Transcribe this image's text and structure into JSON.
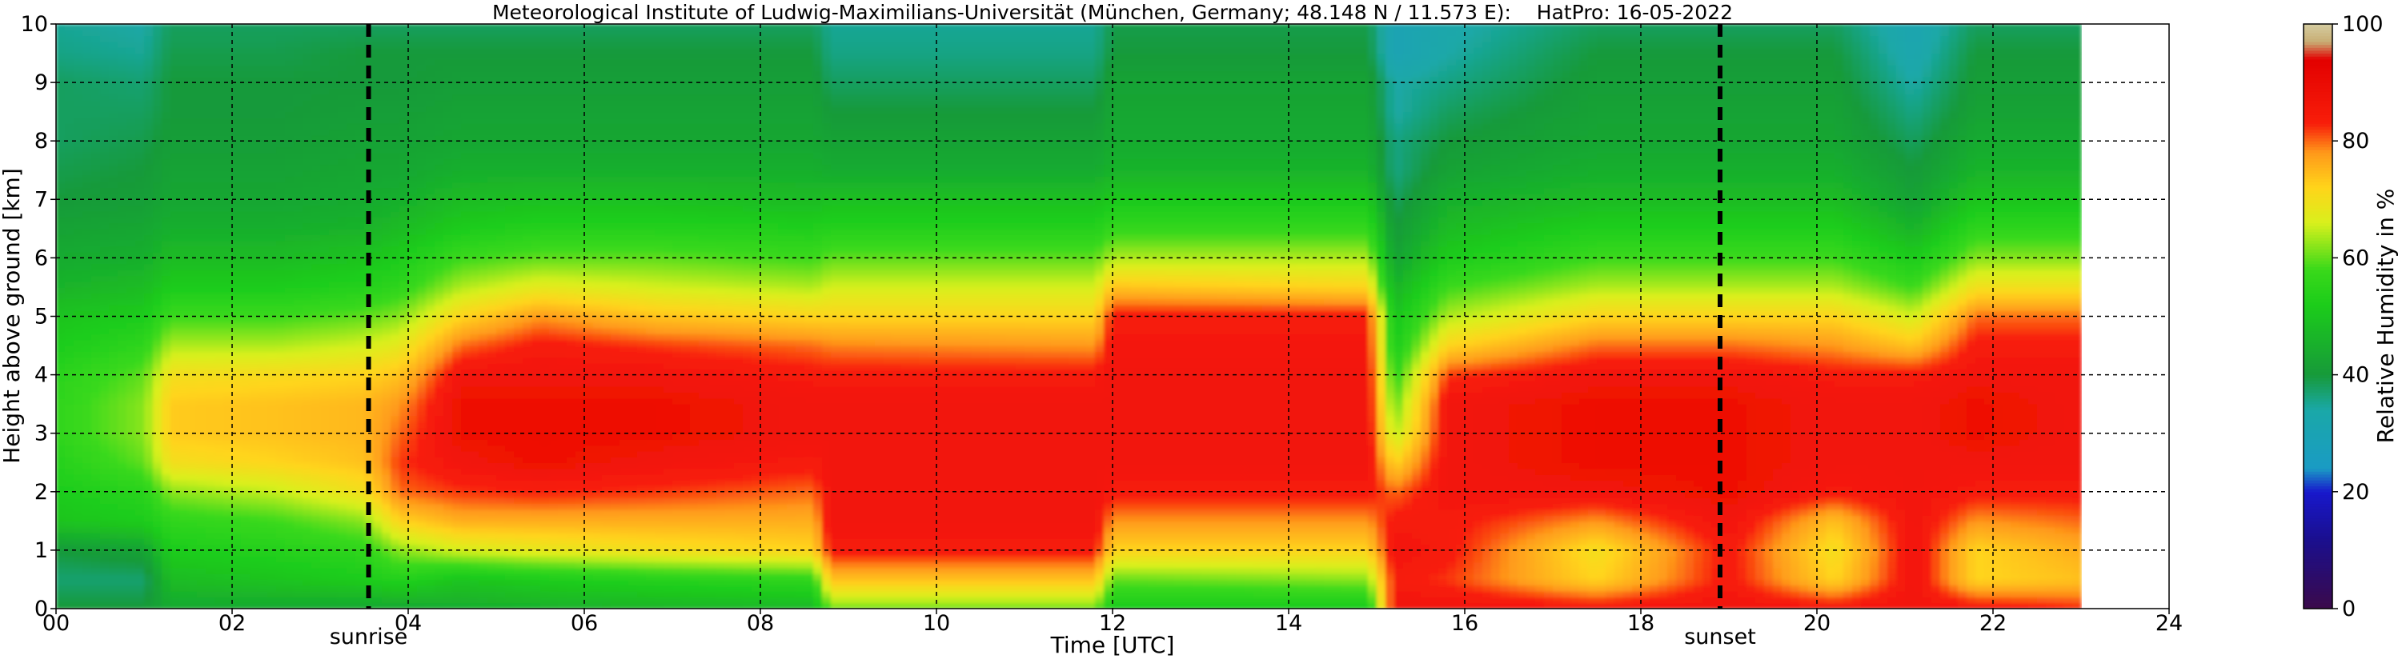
{
  "chart_data": {
    "type": "heatmap",
    "title": "Meteorological Institute of Ludwig-Maximilians-Universität (München, Germany; 48.148 N / 11.573 E):    HatPro: 16-05-2022",
    "xlabel": "Time [UTC]",
    "ylabel": "Height above ground [km]",
    "colorbar_label": "Relative Humidity in %",
    "xlim": [
      0,
      24
    ],
    "ylim": [
      0,
      10
    ],
    "clim": [
      0,
      100
    ],
    "x_ticks": [
      "00",
      "02",
      "04",
      "06",
      "08",
      "10",
      "12",
      "14",
      "16",
      "18",
      "20",
      "22",
      "24"
    ],
    "y_ticks": [
      "0",
      "1",
      "2",
      "3",
      "4",
      "5",
      "6",
      "7",
      "8",
      "9",
      "10"
    ],
    "colorbar_ticks": [
      "0",
      "20",
      "40",
      "60",
      "80",
      "100"
    ],
    "grid": true,
    "data_end_hour": 23.0,
    "markers": [
      {
        "label": "sunrise",
        "x": 3.55
      },
      {
        "label": "sunset",
        "x": 18.9
      }
    ],
    "colormap": [
      {
        "value": 0,
        "color": "#3b0a4a"
      },
      {
        "value": 12,
        "color": "#1a0f8f"
      },
      {
        "value": 20,
        "color": "#1818cc"
      },
      {
        "value": 24,
        "color": "#1a9bc4"
      },
      {
        "value": 34,
        "color": "#1aa8a8"
      },
      {
        "value": 40,
        "color": "#179a3a"
      },
      {
        "value": 52,
        "color": "#1ccc1a"
      },
      {
        "value": 58,
        "color": "#39d91a"
      },
      {
        "value": 66,
        "color": "#d8f01c"
      },
      {
        "value": 72,
        "color": "#ffd51a"
      },
      {
        "value": 78,
        "color": "#ff9a1a"
      },
      {
        "value": 83,
        "color": "#f81e0a"
      },
      {
        "value": 94,
        "color": "#e30000"
      },
      {
        "value": 97,
        "color": "#c8ad74"
      },
      {
        "value": 100,
        "color": "#d4cba0"
      }
    ],
    "heights_km": [
      0.05,
      0.5,
      1.0,
      1.5,
      2.0,
      2.5,
      3.0,
      3.5,
      4.0,
      4.5,
      5.0,
      5.5,
      6.0,
      6.5,
      7.0,
      7.5,
      8.0,
      8.5,
      9.0,
      9.5,
      10.0
    ],
    "columns": [
      {
        "t": 0.0,
        "rh": [
          40,
          37,
          40,
          50,
          52,
          54,
          56,
          56,
          55,
          52,
          50,
          46,
          44,
          42,
          40,
          39,
          38,
          38,
          38,
          36,
          35
        ]
      },
      {
        "t": 1.0,
        "rh": [
          40,
          37,
          42,
          52,
          55,
          60,
          62,
          62,
          60,
          56,
          52,
          48,
          45,
          43,
          41,
          40,
          39,
          38,
          37,
          35,
          34
        ]
      },
      {
        "t": 1.3,
        "rh": [
          44,
          48,
          52,
          56,
          62,
          70,
          73,
          73,
          70,
          64,
          58,
          52,
          48,
          45,
          43,
          42,
          41,
          40,
          40,
          39,
          38
        ]
      },
      {
        "t": 2.5,
        "rh": [
          44,
          50,
          54,
          58,
          65,
          72,
          74,
          74,
          71,
          64,
          58,
          52,
          48,
          45,
          43,
          42,
          41,
          40,
          40,
          39,
          38
        ]
      },
      {
        "t": 3.5,
        "rh": [
          44,
          52,
          56,
          62,
          70,
          74,
          75,
          75,
          72,
          66,
          60,
          54,
          50,
          46,
          44,
          43,
          42,
          41,
          40,
          40,
          38
        ]
      },
      {
        "t": 3.9,
        "rh": [
          44,
          54,
          62,
          72,
          80,
          82,
          80,
          78,
          74,
          68,
          62,
          56,
          52,
          48,
          45,
          43,
          42,
          41,
          40,
          40,
          38
        ]
      },
      {
        "t": 4.6,
        "rh": [
          45,
          50,
          66,
          76,
          82,
          86,
          88,
          88,
          86,
          80,
          72,
          64,
          58,
          52,
          48,
          45,
          43,
          42,
          41,
          40,
          38
        ]
      },
      {
        "t": 5.5,
        "rh": [
          46,
          52,
          68,
          76,
          83,
          88,
          88,
          88,
          86,
          84,
          78,
          68,
          60,
          54,
          49,
          45,
          43,
          42,
          41,
          40,
          38
        ]
      },
      {
        "t": 6.8,
        "rh": [
          47,
          54,
          70,
          76,
          82,
          86,
          88,
          88,
          86,
          82,
          74,
          66,
          60,
          54,
          49,
          45,
          43,
          42,
          41,
          40,
          38
        ]
      },
      {
        "t": 8.6,
        "rh": [
          48,
          56,
          72,
          76,
          80,
          84,
          86,
          86,
          84,
          80,
          72,
          64,
          58,
          53,
          48,
          45,
          43,
          42,
          41,
          40,
          38
        ]
      },
      {
        "t": 8.8,
        "rh": [
          62,
          74,
          84,
          86,
          86,
          86,
          86,
          86,
          84,
          79,
          72,
          66,
          60,
          54,
          49,
          44,
          42,
          40,
          38,
          36,
          35
        ]
      },
      {
        "t": 11.8,
        "rh": [
          62,
          74,
          84,
          86,
          86,
          86,
          86,
          86,
          84,
          78,
          72,
          66,
          60,
          54,
          49,
          44,
          42,
          40,
          38,
          36,
          35
        ]
      },
      {
        "t": 12.0,
        "rh": [
          52,
          60,
          72,
          78,
          84,
          86,
          86,
          86,
          86,
          85,
          84,
          74,
          64,
          57,
          51,
          46,
          44,
          43,
          42,
          40,
          39
        ]
      },
      {
        "t": 14.9,
        "rh": [
          52,
          62,
          72,
          78,
          84,
          86,
          86,
          86,
          86,
          85,
          84,
          72,
          64,
          57,
          51,
          46,
          44,
          43,
          42,
          40,
          39
        ]
      },
      {
        "t": 15.2,
        "rh": [
          86,
          84,
          86,
          84,
          80,
          72,
          64,
          60,
          56,
          52,
          50,
          46,
          42,
          40,
          38,
          36,
          36,
          34,
          34,
          30,
          30
        ]
      },
      {
        "t": 15.8,
        "rh": [
          86,
          82,
          84,
          84,
          86,
          86,
          86,
          86,
          82,
          72,
          64,
          58,
          52,
          48,
          45,
          42,
          40,
          38,
          36,
          34,
          33
        ]
      },
      {
        "t": 17.5,
        "rh": [
          84,
          72,
          70,
          78,
          86,
          88,
          88,
          88,
          86,
          80,
          72,
          64,
          58,
          53,
          48,
          45,
          43,
          42,
          41,
          40,
          38
        ]
      },
      {
        "t": 19.0,
        "rh": [
          86,
          84,
          84,
          86,
          88,
          88,
          88,
          88,
          86,
          80,
          72,
          64,
          58,
          53,
          48,
          45,
          43,
          42,
          41,
          40,
          38
        ]
      },
      {
        "t": 20.2,
        "rh": [
          84,
          72,
          70,
          74,
          84,
          86,
          86,
          86,
          84,
          78,
          72,
          64,
          58,
          53,
          48,
          45,
          43,
          42,
          41,
          40,
          38
        ]
      },
      {
        "t": 21.1,
        "rh": [
          86,
          86,
          86,
          86,
          86,
          86,
          86,
          86,
          84,
          74,
          66,
          58,
          52,
          46,
          42,
          40,
          38,
          36,
          34,
          32,
          31
        ]
      },
      {
        "t": 21.8,
        "rh": [
          84,
          72,
          72,
          78,
          84,
          86,
          88,
          88,
          86,
          84,
          80,
          70,
          62,
          56,
          50,
          46,
          44,
          42,
          41,
          40,
          38
        ]
      },
      {
        "t": 23.0,
        "rh": [
          82,
          74,
          76,
          80,
          84,
          86,
          86,
          86,
          86,
          84,
          80,
          70,
          62,
          56,
          50,
          46,
          44,
          42,
          41,
          40,
          38
        ]
      }
    ]
  }
}
